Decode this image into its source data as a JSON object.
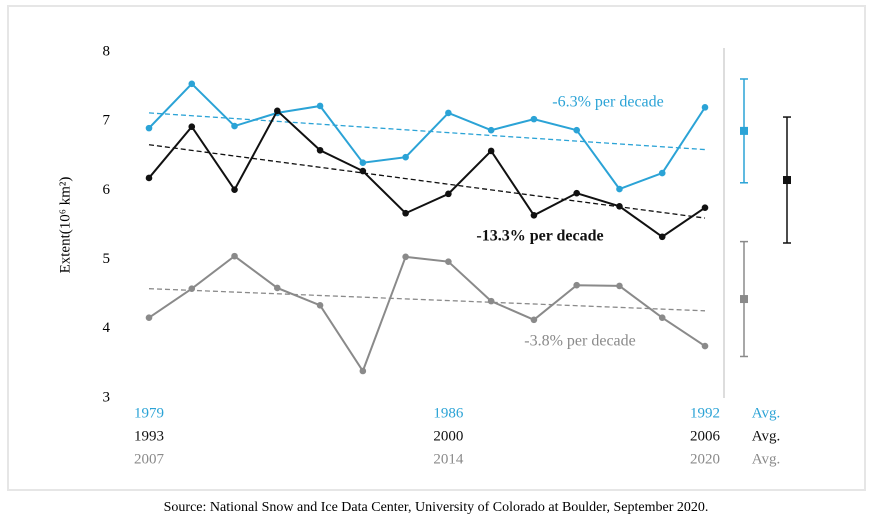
{
  "chart_data": {
    "type": "line",
    "y_label": "Extent(10⁶ km²)",
    "ylim": [
      3,
      8
    ],
    "yticks": [
      3,
      4,
      5,
      6,
      7,
      8
    ],
    "series": [
      {
        "color": "#2ba3d6",
        "categories": [
          "1979",
          null,
          null,
          null,
          null,
          null,
          null,
          "1986",
          null,
          null,
          null,
          null,
          null,
          "1992"
        ],
        "values": [
          6.9,
          7.54,
          6.93,
          7.12,
          7.22,
          6.4,
          6.48,
          7.12,
          6.87,
          7.03,
          6.87,
          6.02,
          6.25,
          7.2
        ],
        "trend": [
          7.12,
          6.59
        ],
        "trend_label": "-6.3% per decade",
        "avg_label": "Avg.",
        "avg": 6.86,
        "avg_error": 0.75
      },
      {
        "color": "#111111",
        "categories": [
          "1993",
          null,
          null,
          null,
          null,
          null,
          null,
          "2000",
          null,
          null,
          null,
          null,
          null,
          "2006"
        ],
        "values": [
          6.18,
          6.92,
          6.01,
          7.15,
          6.58,
          6.28,
          5.67,
          5.95,
          6.57,
          5.64,
          5.96,
          5.77,
          5.33,
          5.75
        ],
        "trend": [
          6.66,
          5.6
        ],
        "trend_label": "-13.3% per decade",
        "avg_label": "Avg.",
        "avg": 6.15,
        "avg_error": 0.91
      },
      {
        "color": "#8a8a8a",
        "categories": [
          "2007",
          null,
          null,
          null,
          null,
          null,
          null,
          "2014",
          null,
          null,
          null,
          null,
          null,
          "2020"
        ],
        "values": [
          4.16,
          4.58,
          5.05,
          4.59,
          4.34,
          3.39,
          5.04,
          4.97,
          4.4,
          4.13,
          4.63,
          4.62,
          4.16,
          3.75
        ],
        "trend": [
          4.58,
          4.26
        ],
        "trend_label": "-3.8% per decade",
        "avg_label": "Avg.",
        "avg": 4.43,
        "avg_error": 0.83
      }
    ],
    "source": "Source: National Snow and Ice Data Center, University of Colorado at Boulder, September 2020."
  }
}
